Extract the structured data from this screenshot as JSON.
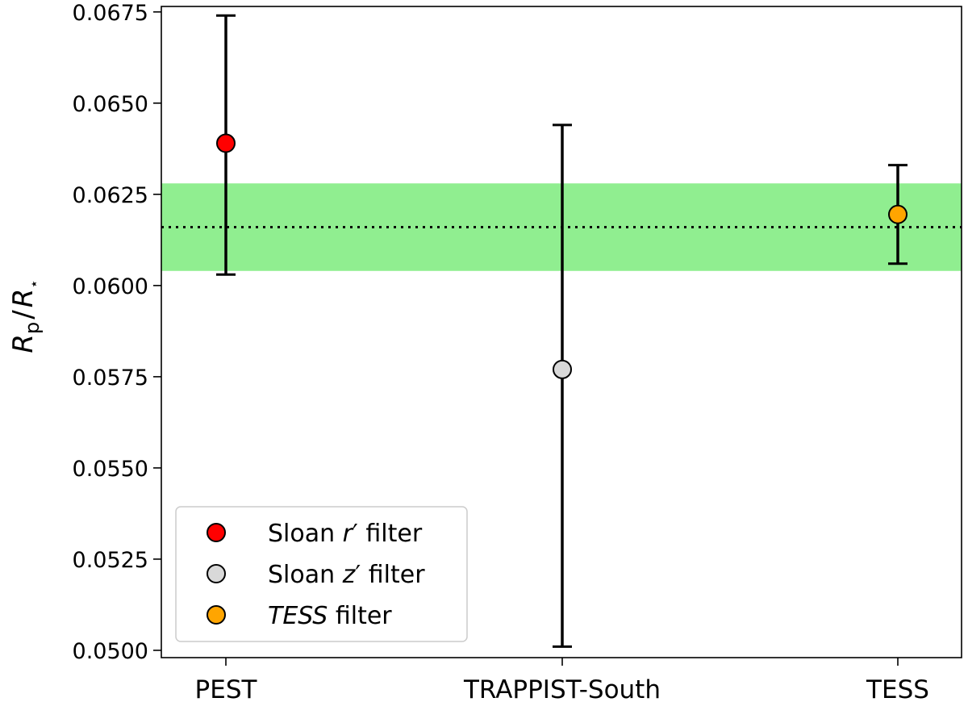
{
  "chart_data": {
    "type": "scatter",
    "ylabel_main": "R",
    "ylabel_sub_num": "p",
    "ylabel_slash": "/",
    "ylabel_main2": "R",
    "ylabel_sub_den": "⋆",
    "ylim": [
      0.0498,
      0.06765
    ],
    "yticks": [
      "0.0500",
      "0.0525",
      "0.0550",
      "0.0575",
      "0.0600",
      "0.0625",
      "0.0650",
      "0.0675"
    ],
    "ytick_values": [
      0.05,
      0.0525,
      0.055,
      0.0575,
      0.06,
      0.0625,
      0.065,
      0.0675
    ],
    "categories": [
      "PEST",
      "TRAPPIST-South",
      "TESS"
    ],
    "points": [
      {
        "category": "PEST",
        "y": 0.0639,
        "err_low": 0.0603,
        "err_high": 0.0674,
        "color": "#ff0000"
      },
      {
        "category": "TRAPPIST-South",
        "y": 0.0577,
        "err_low": 0.0501,
        "err_high": 0.0644,
        "color": "#d9d9d9"
      },
      {
        "category": "TESS",
        "y": 0.06195,
        "err_low": 0.0606,
        "err_high": 0.0633,
        "color": "#ffa500"
      }
    ],
    "mean_line": 0.0616,
    "band": [
      0.0604,
      0.0628
    ],
    "band_color": "#90ee90",
    "legend": {
      "placement": "lower-left",
      "entries": [
        {
          "pre": "Sloan ",
          "var": "r",
          "post": " filter",
          "prime": "′",
          "color": "#ff0000"
        },
        {
          "pre": "Sloan ",
          "var": "z",
          "post": " filter",
          "prime": "′",
          "color": "#d9d9d9"
        },
        {
          "pre": "",
          "var": "TESS",
          "post": " filter",
          "prime": "",
          "color": "#ffa500"
        }
      ]
    }
  }
}
